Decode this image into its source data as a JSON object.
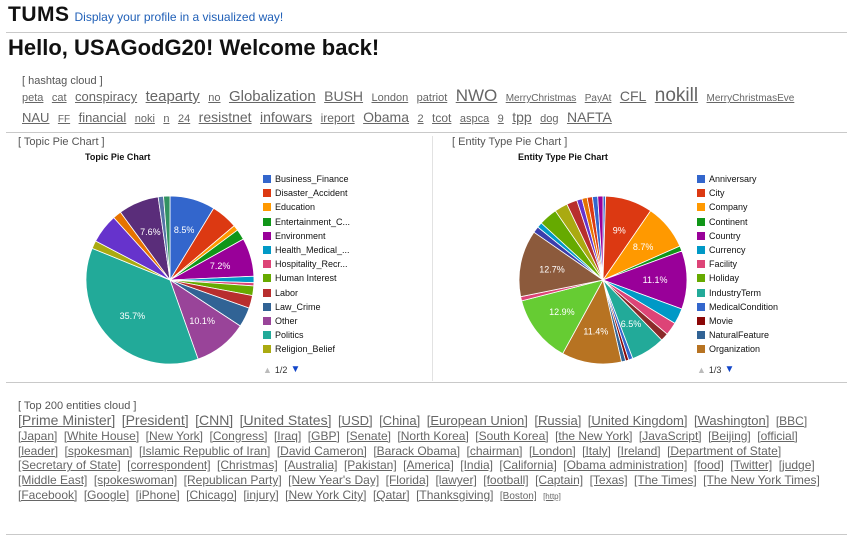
{
  "header": {
    "logo": "TUMS",
    "tagline": "Display your profile in a visualized way!"
  },
  "welcome": "Hello, USAGodG20! Welcome back!",
  "hashtag_cloud": {
    "label": "[ hashtag cloud ]",
    "tags": [
      {
        "text": "peta",
        "size": 11
      },
      {
        "text": "cat",
        "size": 11
      },
      {
        "text": "conspiracy",
        "size": 13
      },
      {
        "text": "teaparty",
        "size": 15
      },
      {
        "text": "no",
        "size": 11
      },
      {
        "text": "Globalization",
        "size": 15
      },
      {
        "text": "BUSH",
        "size": 14
      },
      {
        "text": "London",
        "size": 11
      },
      {
        "text": "patriot",
        "size": 11
      },
      {
        "text": "NWO",
        "size": 17
      },
      {
        "text": "MerryChristmas",
        "size": 10
      },
      {
        "text": "PayAt",
        "size": 10
      },
      {
        "text": "CFL",
        "size": 14
      },
      {
        "text": "nokill",
        "size": 19
      },
      {
        "text": "MerryChristmasEve",
        "size": 10
      },
      {
        "text": "NAU",
        "size": 13
      },
      {
        "text": "FF",
        "size": 10
      },
      {
        "text": "financial",
        "size": 13
      },
      {
        "text": "noki",
        "size": 11
      },
      {
        "text": "n",
        "size": 11
      },
      {
        "text": "24",
        "size": 11
      },
      {
        "text": "resistnet",
        "size": 14
      },
      {
        "text": "infowars",
        "size": 14
      },
      {
        "text": "ireport",
        "size": 12
      },
      {
        "text": "Obama",
        "size": 14
      },
      {
        "text": "2",
        "size": 11
      },
      {
        "text": "tcot",
        "size": 12
      },
      {
        "text": "aspca",
        "size": 11
      },
      {
        "text": "9",
        "size": 11
      },
      {
        "text": "tpp",
        "size": 14
      },
      {
        "text": "dog",
        "size": 11
      },
      {
        "text": "NAFTA",
        "size": 14
      }
    ]
  },
  "topic_chart": {
    "section_label": "[ Topic Pie Chart ]",
    "pager": "1/2",
    "legend": [
      {
        "name": "Business_Finance",
        "color": "#3366cc"
      },
      {
        "name": "Disaster_Accident",
        "color": "#dc3912"
      },
      {
        "name": "Education",
        "color": "#ff9900"
      },
      {
        "name": "Entertainment_C...",
        "color": "#109618"
      },
      {
        "name": "Environment",
        "color": "#990099"
      },
      {
        "name": "Health_Medical_...",
        "color": "#0099c6"
      },
      {
        "name": "Hospitality_Recr...",
        "color": "#dd4477"
      },
      {
        "name": "Human Interest",
        "color": "#66aa00"
      },
      {
        "name": "Labor",
        "color": "#b82e2e"
      },
      {
        "name": "Law_Crime",
        "color": "#316395"
      },
      {
        "name": "Other",
        "color": "#994499"
      },
      {
        "name": "Politics",
        "color": "#22aa99"
      },
      {
        "name": "Religion_Belief",
        "color": "#aaaa11"
      }
    ]
  },
  "entity_chart": {
    "section_label": "[ Entity Type Pie Chart ]",
    "pager": "1/3",
    "legend": [
      {
        "name": "Anniversary",
        "color": "#3366cc"
      },
      {
        "name": "City",
        "color": "#dc3912"
      },
      {
        "name": "Company",
        "color": "#ff9900"
      },
      {
        "name": "Continent",
        "color": "#109618"
      },
      {
        "name": "Country",
        "color": "#990099"
      },
      {
        "name": "Currency",
        "color": "#0099c6"
      },
      {
        "name": "Facility",
        "color": "#dd4477"
      },
      {
        "name": "Holiday",
        "color": "#66aa00"
      },
      {
        "name": "IndustryTerm",
        "color": "#22aa99"
      },
      {
        "name": "MedicalCondition",
        "color": "#3366cc"
      },
      {
        "name": "Movie",
        "color": "#8b0707"
      },
      {
        "name": "NaturalFeature",
        "color": "#316395"
      },
      {
        "name": "Organization",
        "color": "#b77322"
      }
    ]
  },
  "chart_data": [
    {
      "type": "pie",
      "title": "Topic Pie Chart",
      "slices": [
        {
          "label": "Business_Finance",
          "value": 8.5,
          "color": "#3366cc",
          "show": "8.5%"
        },
        {
          "label": "Disaster_Accident",
          "value": 5.0,
          "color": "#dc3912",
          "show": ""
        },
        {
          "label": "Education",
          "value": 1.0,
          "color": "#ff9900",
          "show": ""
        },
        {
          "label": "Entertainment_C...",
          "value": 2.0,
          "color": "#109618",
          "show": ""
        },
        {
          "label": "Environment",
          "value": 7.2,
          "color": "#990099",
          "show": "7.2%"
        },
        {
          "label": "Health_Medical_...",
          "value": 1.2,
          "color": "#0099c6",
          "show": ""
        },
        {
          "label": "Hospitality_Recr...",
          "value": 0.6,
          "color": "#dd4477",
          "show": ""
        },
        {
          "label": "Human Interest",
          "value": 1.8,
          "color": "#66aa00",
          "show": ""
        },
        {
          "label": "Labor",
          "value": 2.4,
          "color": "#b82e2e",
          "show": ""
        },
        {
          "label": "Law_Crime",
          "value": 3.7,
          "color": "#316395",
          "show": ""
        },
        {
          "label": "Other",
          "value": 10.1,
          "color": "#994499",
          "show": "10.1%"
        },
        {
          "label": "Politics",
          "value": 35.7,
          "color": "#22aa99",
          "show": "35.7%"
        },
        {
          "label": "Religion_Belief",
          "value": 1.5,
          "color": "#aaaa11",
          "show": ""
        },
        {
          "label": "",
          "value": 5.5,
          "color": "#6633cc",
          "show": ""
        },
        {
          "label": "",
          "value": 1.6,
          "color": "#e67300",
          "show": ""
        },
        {
          "label": "",
          "value": 7.6,
          "color": "#5a2d7a",
          "show": "7.6%"
        },
        {
          "label": "",
          "value": 1.0,
          "color": "#5574a6",
          "show": ""
        },
        {
          "label": "",
          "value": 1.2,
          "color": "#329262",
          "show": ""
        }
      ]
    },
    {
      "type": "pie",
      "title": "Entity Type Pie Chart",
      "slices": [
        {
          "label": "Anniversary",
          "value": 0.5,
          "color": "#3366cc",
          "show": ""
        },
        {
          "label": "City",
          "value": 9.0,
          "color": "#dc3912",
          "show": "9%"
        },
        {
          "label": "Company",
          "value": 8.7,
          "color": "#ff9900",
          "show": "8.7%"
        },
        {
          "label": "Continent",
          "value": 1.0,
          "color": "#109618",
          "show": ""
        },
        {
          "label": "Country",
          "value": 11.1,
          "color": "#990099",
          "show": "11.1%"
        },
        {
          "label": "Currency",
          "value": 3.0,
          "color": "#0099c6",
          "show": ""
        },
        {
          "label": "Facility",
          "value": 2.5,
          "color": "#dd4477",
          "show": ""
        },
        {
          "label": "Holiday",
          "value": 1.5,
          "color": "#8b2a2a",
          "show": ""
        },
        {
          "label": "IndustryTerm",
          "value": 6.5,
          "color": "#22aa99",
          "show": "6.5%"
        },
        {
          "label": "MedicalCondition",
          "value": 0.8,
          "color": "#3366cc",
          "show": ""
        },
        {
          "label": "Movie",
          "value": 0.6,
          "color": "#8b0707",
          "show": ""
        },
        {
          "label": "NaturalFeature",
          "value": 0.8,
          "color": "#316395",
          "show": ""
        },
        {
          "label": "Organization",
          "value": 11.4,
          "color": "#b77322",
          "show": "11.4%"
        },
        {
          "label": "",
          "value": 12.9,
          "color": "#66cc33",
          "show": "12.9%"
        },
        {
          "label": "",
          "value": 0.8,
          "color": "#dd4477",
          "show": ""
        },
        {
          "label": "",
          "value": 12.7,
          "color": "#8c5a3c",
          "show": "12.7%"
        },
        {
          "label": "",
          "value": 1.2,
          "color": "#3b3eac",
          "show": ""
        },
        {
          "label": "",
          "value": 1.0,
          "color": "#0099c6",
          "show": ""
        },
        {
          "label": "",
          "value": 3.5,
          "color": "#66aa00",
          "show": ""
        },
        {
          "label": "",
          "value": 2.5,
          "color": "#aaaa11",
          "show": ""
        },
        {
          "label": "",
          "value": 2.0,
          "color": "#b82e2e",
          "show": ""
        },
        {
          "label": "",
          "value": 1.0,
          "color": "#6633cc",
          "show": ""
        },
        {
          "label": "",
          "value": 1.0,
          "color": "#e67300",
          "show": ""
        },
        {
          "label": "",
          "value": 1.0,
          "color": "#dc3912",
          "show": ""
        },
        {
          "label": "",
          "value": 1.0,
          "color": "#3366cc",
          "show": ""
        },
        {
          "label": "",
          "value": 1.0,
          "color": "#990099",
          "show": ""
        }
      ]
    }
  ],
  "entities_cloud": {
    "label": "[ Top 200 entities cloud ]",
    "items": [
      {
        "text": "[Prime Minister]",
        "size": 14
      },
      {
        "text": "[President]",
        "size": 14
      },
      {
        "text": "[CNN]",
        "size": 14
      },
      {
        "text": "[United States]",
        "size": 14
      },
      {
        "text": "[USD]",
        "size": 13
      },
      {
        "text": "[China]",
        "size": 13
      },
      {
        "text": "[European Union]",
        "size": 13
      },
      {
        "text": "[Russia]",
        "size": 13
      },
      {
        "text": "[United Kingdom]",
        "size": 13
      },
      {
        "text": "[Washington]",
        "size": 13
      },
      {
        "text": "[BBC]",
        "size": 12
      },
      {
        "text": "[Japan]",
        "size": 12
      },
      {
        "text": "[White House]",
        "size": 12
      },
      {
        "text": "[New York]",
        "size": 12
      },
      {
        "text": "[Congress]",
        "size": 12
      },
      {
        "text": "[Iraq]",
        "size": 12
      },
      {
        "text": "[GBP]",
        "size": 12
      },
      {
        "text": "[Senate]",
        "size": 12
      },
      {
        "text": "[North Korea]",
        "size": 12
      },
      {
        "text": "[South Korea]",
        "size": 12
      },
      {
        "text": "[the New York]",
        "size": 12
      },
      {
        "text": "[JavaScript]",
        "size": 12
      },
      {
        "text": "[Beijing]",
        "size": 12
      },
      {
        "text": "[official]",
        "size": 12
      },
      {
        "text": "[leader]",
        "size": 12
      },
      {
        "text": "[spokesman]",
        "size": 12
      },
      {
        "text": "[Islamic Republic of Iran]",
        "size": 12
      },
      {
        "text": "[David Cameron]",
        "size": 12
      },
      {
        "text": "[Barack Obama]",
        "size": 12
      },
      {
        "text": "[chairman]",
        "size": 12
      },
      {
        "text": "[London]",
        "size": 12
      },
      {
        "text": "[Italy]",
        "size": 12
      },
      {
        "text": "[Ireland]",
        "size": 12
      },
      {
        "text": "[Department of State]",
        "size": 12
      },
      {
        "text": "[Secretary of State]",
        "size": 12
      },
      {
        "text": "[correspondent]",
        "size": 12
      },
      {
        "text": "[Christmas]",
        "size": 12
      },
      {
        "text": "[Australia]",
        "size": 12
      },
      {
        "text": "[Pakistan]",
        "size": 12
      },
      {
        "text": "[America]",
        "size": 12
      },
      {
        "text": "[India]",
        "size": 12
      },
      {
        "text": "[California]",
        "size": 12
      },
      {
        "text": "[Obama administration]",
        "size": 12
      },
      {
        "text": "[food]",
        "size": 12
      },
      {
        "text": "[Twitter]",
        "size": 12
      },
      {
        "text": "[judge]",
        "size": 12
      },
      {
        "text": "[Middle East]",
        "size": 12
      },
      {
        "text": "[spokeswoman]",
        "size": 12
      },
      {
        "text": "[Republican Party]",
        "size": 12
      },
      {
        "text": "[New Year's Day]",
        "size": 12
      },
      {
        "text": "[Florida]",
        "size": 12
      },
      {
        "text": "[lawyer]",
        "size": 12
      },
      {
        "text": "[football]",
        "size": 12
      },
      {
        "text": "[Captain]",
        "size": 12
      },
      {
        "text": "[Texas]",
        "size": 12
      },
      {
        "text": "[The Times]",
        "size": 12
      },
      {
        "text": "[The New York Times]",
        "size": 12
      },
      {
        "text": "[Facebook]",
        "size": 12
      },
      {
        "text": "[Google]",
        "size": 12
      },
      {
        "text": "[iPhone]",
        "size": 12
      },
      {
        "text": "[Chicago]",
        "size": 12
      },
      {
        "text": "[injury]",
        "size": 12
      },
      {
        "text": "[New York City]",
        "size": 12
      },
      {
        "text": "[Qatar]",
        "size": 12
      },
      {
        "text": "[Thanksgiving]",
        "size": 12
      },
      {
        "text": "[Boston]",
        "size": 10
      },
      {
        "text": "[http]",
        "size": 8
      }
    ]
  }
}
